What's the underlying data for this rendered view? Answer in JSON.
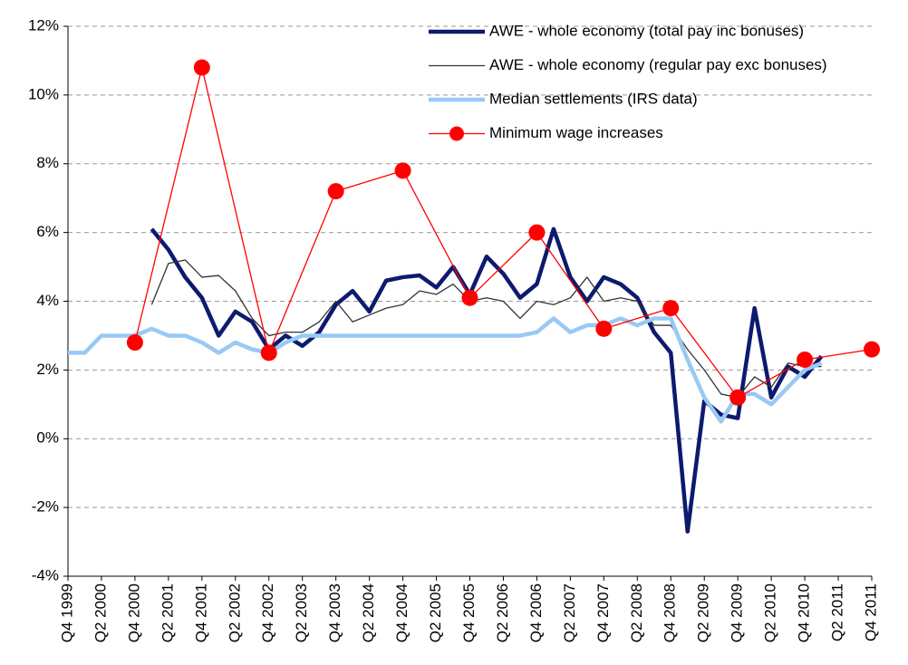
{
  "chart_data": {
    "type": "line",
    "categories": [
      "Q4 1999",
      null,
      "Q2 2000",
      null,
      "Q4 2000",
      null,
      "Q2 2001",
      null,
      "Q4 2001",
      null,
      "Q2 2002",
      null,
      "Q4 2002",
      null,
      "Q2 2003",
      null,
      "Q4 2003",
      null,
      "Q2 2004",
      null,
      "Q4 2004",
      null,
      "Q2 2005",
      null,
      "Q4 2005",
      null,
      "Q2 2006",
      null,
      "Q4 2006",
      null,
      "Q2 2007",
      null,
      "Q4 2007",
      null,
      "Q2 2008",
      null,
      "Q4 2008",
      null,
      "Q2 2009",
      null,
      "Q4 2009",
      null,
      "Q2 2010",
      null,
      "Q4 2010",
      null,
      "Q2 2011",
      null,
      "Q4 2011"
    ],
    "series": [
      {
        "name": "AWE - whole economy (total pay inc bonuses)",
        "color": "#0d1a6e",
        "line_width": 4.5,
        "values": [
          null,
          null,
          null,
          null,
          null,
          6.1,
          5.5,
          4.7,
          4.1,
          3.0,
          3.7,
          3.4,
          2.6,
          3.0,
          2.7,
          3.1,
          3.9,
          4.3,
          3.7,
          4.6,
          4.7,
          4.75,
          4.4,
          5.0,
          4.2,
          5.3,
          4.8,
          4.1,
          4.5,
          6.1,
          4.7,
          4.0,
          4.7,
          4.5,
          4.1,
          3.1,
          2.5,
          -2.7,
          1.1,
          0.7,
          0.6,
          3.8,
          1.2,
          2.1,
          1.8,
          2.4,
          null,
          null,
          null
        ]
      },
      {
        "name": "AWE - whole economy (regular pay exc bonuses)",
        "color": "#333333",
        "line_width": 1.3,
        "values": [
          null,
          null,
          null,
          null,
          null,
          3.9,
          5.1,
          5.2,
          4.7,
          4.75,
          4.3,
          3.5,
          3.0,
          3.1,
          3.1,
          3.4,
          4.0,
          3.4,
          3.6,
          3.8,
          3.9,
          4.3,
          4.2,
          4.5,
          4.0,
          4.1,
          4.0,
          3.5,
          4.0,
          3.9,
          4.1,
          4.7,
          4.0,
          4.1,
          4.0,
          3.3,
          3.3,
          2.6,
          2.0,
          1.3,
          1.2,
          1.8,
          1.5,
          2.2,
          2.1,
          2.1,
          null,
          null,
          null
        ]
      },
      {
        "name": "Median settlements (IRS data)",
        "color": "#99c9f5",
        "line_width": 4.5,
        "values": [
          2.5,
          2.5,
          3.0,
          3.0,
          3.0,
          3.2,
          3.0,
          3.0,
          2.8,
          2.5,
          2.8,
          2.6,
          2.5,
          2.8,
          3.0,
          3.0,
          3.0,
          3.0,
          3.0,
          3.0,
          3.0,
          3.0,
          3.0,
          3.0,
          3.0,
          3.0,
          3.0,
          3.0,
          3.1,
          3.5,
          3.1,
          3.3,
          3.3,
          3.5,
          3.3,
          3.5,
          3.5,
          2.3,
          1.2,
          0.5,
          1.3,
          1.3,
          1.0,
          1.5,
          2.0,
          2.2,
          null,
          null,
          null
        ]
      },
      {
        "name": "Minimum wage increases",
        "color": "#ff0000",
        "line_width": 1.3,
        "marker": "circle",
        "connect_gaps": true,
        "values": [
          null,
          null,
          null,
          null,
          2.8,
          null,
          null,
          null,
          10.8,
          null,
          null,
          null,
          2.5,
          null,
          null,
          null,
          7.2,
          null,
          null,
          null,
          7.8,
          null,
          null,
          null,
          4.1,
          null,
          null,
          null,
          6.0,
          null,
          null,
          null,
          3.2,
          null,
          null,
          null,
          3.8,
          null,
          null,
          null,
          1.2,
          null,
          null,
          null,
          2.3,
          null,
          null,
          null,
          2.6
        ]
      }
    ],
    "ylim": [
      -4,
      12
    ],
    "yticks": [
      {
        "value": -4,
        "label": "-4%"
      },
      {
        "value": -2,
        "label": "-2%"
      },
      {
        "value": 0,
        "label": "0%"
      },
      {
        "value": 2,
        "label": "2%"
      },
      {
        "value": 4,
        "label": "4%"
      },
      {
        "value": 6,
        "label": "6%"
      },
      {
        "value": 8,
        "label": "8%"
      },
      {
        "value": 10,
        "label": "10%"
      },
      {
        "value": 12,
        "label": "12%"
      }
    ],
    "grid": true,
    "legend": "top-right"
  }
}
